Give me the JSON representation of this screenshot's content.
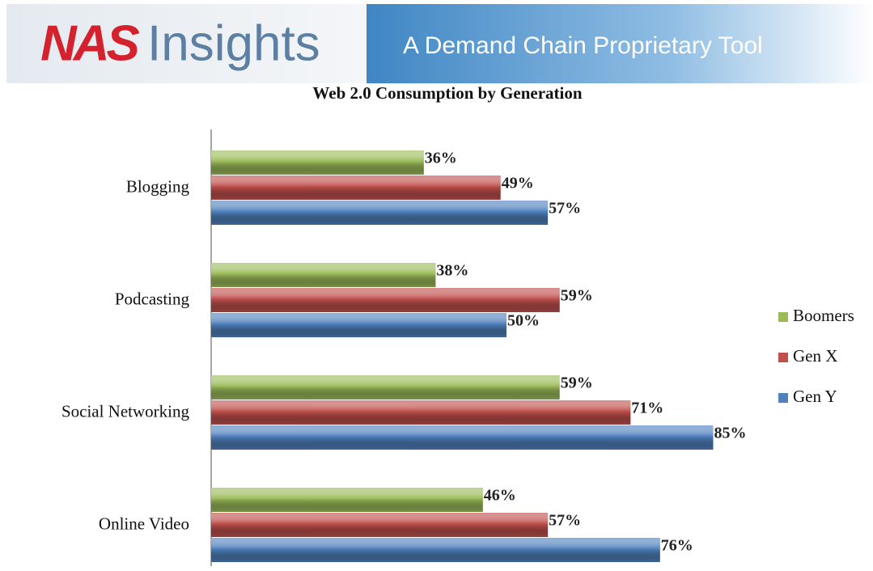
{
  "header": {
    "logo": "NAS",
    "brand": "Insights",
    "tagline": "A Demand Chain Proprietary Tool"
  },
  "chart_data": {
    "type": "hbar",
    "title": "Web 2.0 Consumption by Generation",
    "categories": [
      "Blogging",
      "Podcasting",
      "Social Networking",
      "Online Video"
    ],
    "series": [
      {
        "name": "Boomers",
        "color": "#9bbb59",
        "values": [
          36,
          38,
          59,
          46
        ],
        "value_labels": [
          "36%",
          "38%",
          "59%",
          "46%"
        ]
      },
      {
        "name": "Gen X",
        "color": "#c0504d",
        "values": [
          49,
          59,
          71,
          57
        ],
        "value_labels": [
          "49%",
          "59%",
          "71%",
          "57%"
        ]
      },
      {
        "name": "Gen Y",
        "color": "#4f81bd",
        "values": [
          57,
          50,
          85,
          76
        ],
        "value_labels": [
          "57%",
          "50%",
          "85%",
          "76%"
        ]
      }
    ],
    "legend": "right"
  }
}
